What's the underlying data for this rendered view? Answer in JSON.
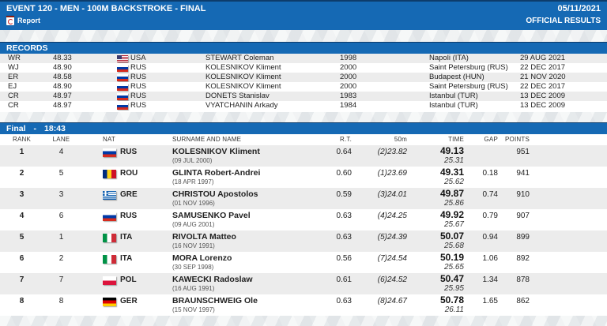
{
  "header": {
    "title": "EVENT 120 - MEN - 100M BACKSTROKE - FINAL",
    "date": "05/11/2021",
    "report_label": "Report",
    "official_results": "OFFICIAL RESULTS"
  },
  "colors": {
    "header_blue": "#1569b4",
    "header_border": "#0d3c6b"
  },
  "records": {
    "title": "RECORDS",
    "rows": [
      {
        "type": "WR",
        "time": "48.33",
        "nat": "USA",
        "name": "STEWART Coleman",
        "year": "1998",
        "location": "Napoli (ITA)",
        "date": "29 AUG 2021"
      },
      {
        "type": "WJ",
        "time": "48.90",
        "nat": "RUS",
        "name": "KOLESNIKOV Kliment",
        "year": "2000",
        "location": "Saint Petersburg (RUS)",
        "date": "22 DEC 2017"
      },
      {
        "type": "ER",
        "time": "48.58",
        "nat": "RUS",
        "name": "KOLESNIKOV Kliment",
        "year": "2000",
        "location": "Budapest (HUN)",
        "date": "21 NOV 2020"
      },
      {
        "type": "EJ",
        "time": "48.90",
        "nat": "RUS",
        "name": "KOLESNIKOV Kliment",
        "year": "2000",
        "location": "Saint Petersburg (RUS)",
        "date": "22 DEC 2017"
      },
      {
        "type": "CR",
        "time": "48.97",
        "nat": "RUS",
        "name": "DONETS Stanislav",
        "year": "1983",
        "location": "Istanbul (TUR)",
        "date": "13 DEC 2009"
      },
      {
        "type": "CR",
        "time": "48.97",
        "nat": "RUS",
        "name": "VYATCHANIN Arkady",
        "year": "1984",
        "location": "Istanbul (TUR)",
        "date": "13 DEC 2009"
      }
    ]
  },
  "final": {
    "title": "Final",
    "separator": "-",
    "time": "18:43",
    "columns": [
      "RANK",
      "LANE",
      "NAT",
      "SURNAME AND NAME",
      "R.T.",
      "50m",
      "TIME",
      "GAP",
      "POINTS"
    ],
    "rows": [
      {
        "rank": "1",
        "lane": "4",
        "nat": "RUS",
        "name": "KOLESNIKOV Kliment",
        "dob": "(09 JUL 2000)",
        "rt": "0.64",
        "split50": "(2)23.82",
        "time": "49.13",
        "split2": "25.31",
        "gap": "",
        "points": "951"
      },
      {
        "rank": "2",
        "lane": "5",
        "nat": "ROU",
        "name": "GLINTA Robert-Andrei",
        "dob": "(18 APR 1997)",
        "rt": "0.60",
        "split50": "(1)23.69",
        "time": "49.31",
        "split2": "25.62",
        "gap": "0.18",
        "points": "941"
      },
      {
        "rank": "3",
        "lane": "3",
        "nat": "GRE",
        "name": "CHRISTOU Apostolos",
        "dob": "(01 NOV 1996)",
        "rt": "0.59",
        "split50": "(3)24.01",
        "time": "49.87",
        "split2": "25.86",
        "gap": "0.74",
        "points": "910"
      },
      {
        "rank": "4",
        "lane": "6",
        "nat": "RUS",
        "name": "SAMUSENKO Pavel",
        "dob": "(09 AUG 2001)",
        "rt": "0.63",
        "split50": "(4)24.25",
        "time": "49.92",
        "split2": "25.67",
        "gap": "0.79",
        "points": "907"
      },
      {
        "rank": "5",
        "lane": "1",
        "nat": "ITA",
        "name": "RIVOLTA Matteo",
        "dob": "(16 NOV 1991)",
        "rt": "0.63",
        "split50": "(5)24.39",
        "time": "50.07",
        "split2": "25.68",
        "gap": "0.94",
        "points": "899"
      },
      {
        "rank": "6",
        "lane": "2",
        "nat": "ITA",
        "name": "MORA Lorenzo",
        "dob": "(30 SEP 1998)",
        "rt": "0.56",
        "split50": "(7)24.54",
        "time": "50.19",
        "split2": "25.65",
        "gap": "1.06",
        "points": "892"
      },
      {
        "rank": "7",
        "lane": "7",
        "nat": "POL",
        "name": "KAWECKI Radoslaw",
        "dob": "(16 AUG 1991)",
        "rt": "0.61",
        "split50": "(6)24.52",
        "time": "50.47",
        "split2": "25.95",
        "gap": "1.34",
        "points": "878"
      },
      {
        "rank": "8",
        "lane": "8",
        "nat": "GER",
        "name": "BRAUNSCHWEIG Ole",
        "dob": "(15 NOV 1997)",
        "rt": "0.63",
        "split50": "(8)24.67",
        "time": "50.78",
        "split2": "26.11",
        "gap": "1.65",
        "points": "862"
      }
    ]
  }
}
